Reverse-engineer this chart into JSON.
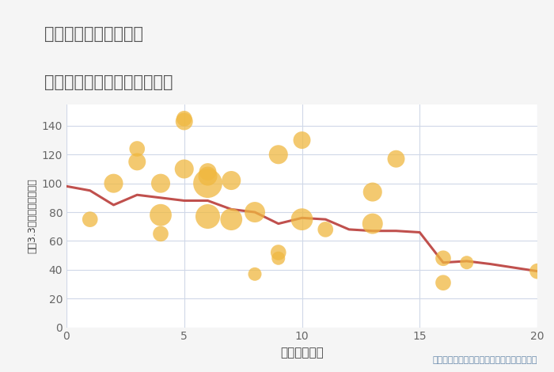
{
  "title_line1": "埼玉県飯能市征矢町の",
  "title_line2": "駅距離別中古マンション価格",
  "xlabel": "駅距離（分）",
  "ylabel": "坪（3.3㎡）単価（万円）",
  "background_color": "#f5f5f5",
  "plot_bg_color": "#ffffff",
  "grid_color": "#d0d8e8",
  "title_color": "#555555",
  "annotation_color": "#6688aa",
  "annotation_text": "円の大きさは、取引のあった物件面積を示す",
  "xlim": [
    0,
    20
  ],
  "ylim": [
    0,
    155
  ],
  "xticks": [
    0,
    5,
    10,
    15,
    20
  ],
  "yticks": [
    0,
    20,
    40,
    60,
    80,
    100,
    120,
    140
  ],
  "scatter_x": [
    1,
    2,
    3,
    3,
    4,
    4,
    4,
    5,
    5,
    5,
    6,
    6,
    6,
    6,
    7,
    7,
    8,
    8,
    9,
    9,
    9,
    10,
    10,
    11,
    13,
    13,
    14,
    16,
    16,
    17,
    20
  ],
  "scatter_y": [
    75,
    100,
    124,
    115,
    100,
    65,
    78,
    145,
    143,
    110,
    108,
    105,
    100,
    77,
    102,
    75,
    80,
    37,
    120,
    52,
    48,
    130,
    75,
    68,
    94,
    72,
    117,
    48,
    31,
    45,
    39
  ],
  "scatter_size": [
    200,
    300,
    200,
    250,
    300,
    200,
    400,
    200,
    250,
    300,
    250,
    300,
    700,
    500,
    300,
    400,
    350,
    150,
    300,
    200,
    150,
    250,
    400,
    200,
    300,
    350,
    250,
    200,
    200,
    150,
    200
  ],
  "scatter_color": "#f0b840",
  "scatter_alpha": 0.75,
  "line_x": [
    0,
    1,
    2,
    3,
    4,
    5,
    6,
    7,
    8,
    9,
    10,
    11,
    12,
    13,
    14,
    15,
    16,
    17,
    18,
    20
  ],
  "line_y": [
    98,
    95,
    85,
    92,
    90,
    88,
    88,
    82,
    80,
    72,
    76,
    75,
    68,
    67,
    67,
    66,
    45,
    46,
    44,
    39
  ],
  "line_color": "#c0504d",
  "line_width": 2.2
}
